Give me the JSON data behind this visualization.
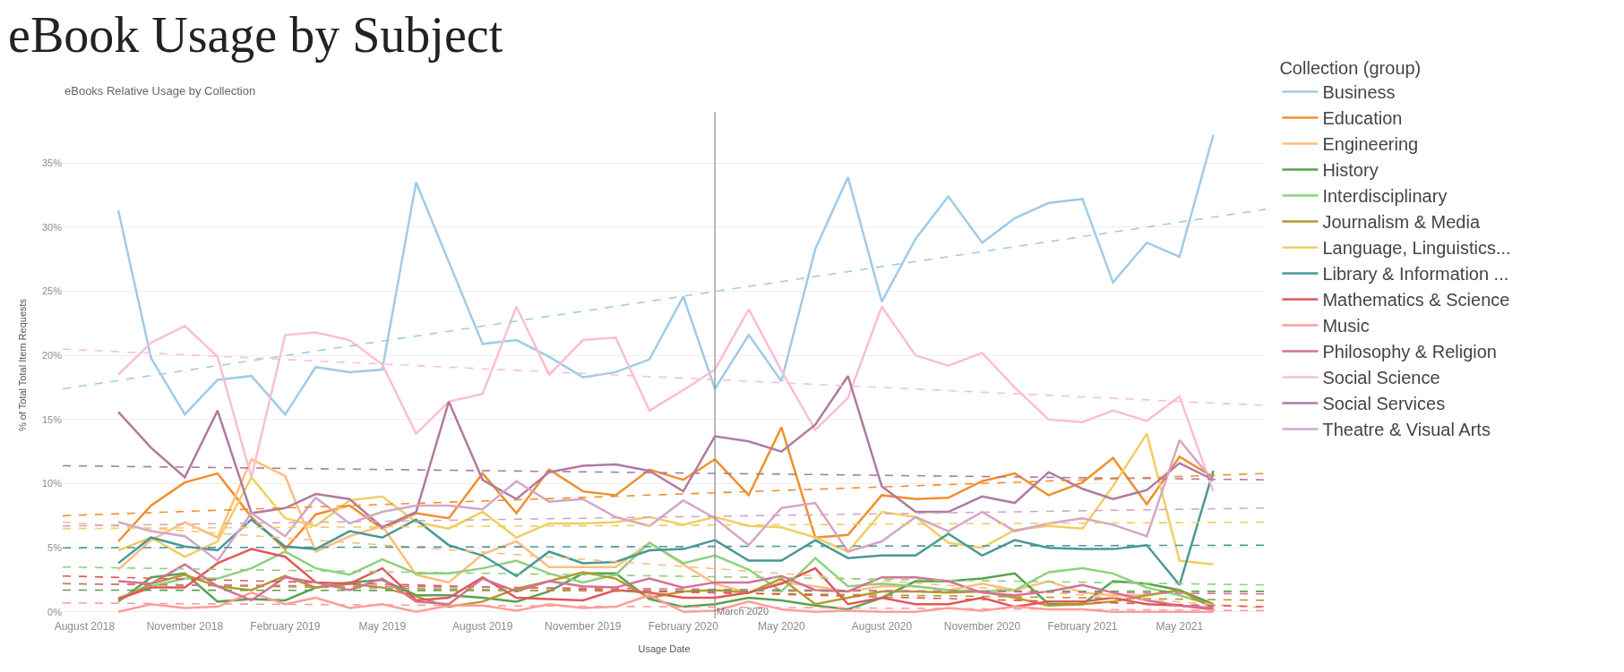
{
  "chart_data": {
    "type": "line",
    "title": "eBook Usage by Subject",
    "subtitle": "eBooks Relative Usage by Collection",
    "xlabel": "Usage Date",
    "ylabel": "% of Total Total Item Requests",
    "legend_title": "Collection (group)",
    "legend": "right",
    "grid": "y",
    "line_style": "solid",
    "x": [
      "2018-09",
      "2018-10",
      "2018-11",
      "2018-12",
      "2019-01",
      "2019-02",
      "2019-03",
      "2019-04",
      "2019-05",
      "2019-06",
      "2019-07",
      "2019-08",
      "2019-09",
      "2019-10",
      "2019-11",
      "2019-12",
      "2020-01",
      "2020-02",
      "2020-03",
      "2020-04",
      "2020-05",
      "2020-06",
      "2020-07",
      "2020-08",
      "2020-09",
      "2020-10",
      "2020-11",
      "2020-12",
      "2021-01",
      "2021-02",
      "2021-03",
      "2021-04",
      "2021-05",
      "2021-06"
    ],
    "xlim": [
      "2018-07-12",
      "2021-07-19"
    ],
    "xticks": [
      {
        "value": "2018-08-01",
        "label": "August 2018"
      },
      {
        "value": "2018-11-01",
        "label": "November 2018"
      },
      {
        "value": "2019-02-01",
        "label": "February 2019"
      },
      {
        "value": "2019-05-01",
        "label": "May 2019"
      },
      {
        "value": "2019-08-01",
        "label": "August 2019"
      },
      {
        "value": "2019-11-01",
        "label": "November 2019"
      },
      {
        "value": "2020-02-01",
        "label": "February 2020"
      },
      {
        "value": "2020-05-01",
        "label": "May 2020"
      },
      {
        "value": "2020-08-01",
        "label": "August 2020"
      },
      {
        "value": "2020-11-01",
        "label": "November 2020"
      },
      {
        "value": "2021-02-01",
        "label": "February 2021"
      },
      {
        "value": "2021-05-01",
        "label": "May 2021"
      }
    ],
    "ylim": [
      -0.5,
      39
    ],
    "yticks": [
      {
        "value": 0,
        "label": "0%"
      },
      {
        "value": 5,
        "label": "5%"
      },
      {
        "value": 10,
        "label": "10%"
      },
      {
        "value": 15,
        "label": "15%"
      },
      {
        "value": 20,
        "label": "20%"
      },
      {
        "value": 25,
        "label": "25%"
      },
      {
        "value": 30,
        "label": "30%"
      },
      {
        "value": 35,
        "label": "35%"
      }
    ],
    "ref_lines": [
      {
        "axis": "x",
        "value": "2020-03",
        "label": "March 2020",
        "color": "#8c8c8c"
      }
    ],
    "series": [
      {
        "name": "Business",
        "color": "#a0cbe8",
        "values": [
          31.3,
          19.8,
          15.4,
          18.1,
          18.4,
          15.4,
          19.1,
          18.7,
          18.9,
          33.5,
          27.3,
          20.9,
          21.2,
          19.9,
          18.3,
          18.7,
          19.7,
          24.6,
          17.4,
          21.6,
          18.0,
          28.3,
          33.9,
          24.2,
          29.1,
          32.4,
          28.8,
          30.7,
          31.9,
          32.2,
          25.7,
          28.8,
          27.7,
          37.2
        ]
      },
      {
        "name": "Education",
        "color": "#f28e2b",
        "values": [
          5.5,
          8.3,
          10.1,
          10.8,
          7.4,
          4.9,
          7.6,
          8.3,
          6.5,
          7.7,
          7.3,
          10.8,
          7.7,
          11.1,
          9.4,
          9.1,
          11.1,
          10.3,
          11.9,
          9.1,
          14.4,
          5.8,
          6.0,
          9.1,
          8.8,
          8.9,
          10.2,
          10.8,
          9.1,
          10.1,
          12.0,
          8.4,
          12.1,
          10.5
        ]
      },
      {
        "name": "Engineering",
        "color": "#ffbe7d",
        "values": [
          3.3,
          5.6,
          7.0,
          5.8,
          11.9,
          10.6,
          4.7,
          5.9,
          6.7,
          2.9,
          2.3,
          4.5,
          5.5,
          3.5,
          3.5,
          3.5,
          5.4,
          3.7,
          2.2,
          1.5,
          2.3,
          2.0,
          1.6,
          2.0,
          2.0,
          1.7,
          2.2,
          1.7,
          2.4,
          1.5,
          1.3,
          1.3,
          1.7,
          0.4
        ]
      },
      {
        "name": "History",
        "color": "#59a14f",
        "values": [
          0.8,
          2.7,
          3.0,
          0.8,
          1.0,
          0.9,
          1.9,
          2.3,
          2.5,
          1.3,
          1.3,
          1.1,
          0.8,
          1.6,
          3.0,
          3.0,
          1.0,
          0.4,
          0.6,
          1.1,
          0.9,
          0.5,
          0.2,
          1.1,
          2.4,
          2.4,
          2.6,
          3.0,
          0.6,
          0.6,
          2.4,
          2.2,
          1.7,
          0.6
        ]
      },
      {
        "name": "Interdisciplinary",
        "color": "#8cd17d",
        "values": [
          1.1,
          2.0,
          2.6,
          2.6,
          3.4,
          4.7,
          3.4,
          2.9,
          4.1,
          3.0,
          3.0,
          3.4,
          4.0,
          3.0,
          2.3,
          2.9,
          5.4,
          3.8,
          4.4,
          3.3,
          1.6,
          4.2,
          2.0,
          2.2,
          2.0,
          1.7,
          1.6,
          1.7,
          3.1,
          3.4,
          3.0,
          1.9,
          1.3,
          0.5
        ]
      },
      {
        "name": "Journalism & Media",
        "color": "#b6992d",
        "values": [
          0.9,
          2.2,
          2.9,
          2.0,
          1.7,
          2.8,
          1.9,
          2.2,
          1.9,
          1.2,
          0.4,
          0.8,
          1.8,
          2.4,
          3.1,
          2.6,
          1.1,
          1.6,
          1.7,
          1.5,
          2.6,
          0.6,
          1.1,
          1.6,
          1.6,
          1.5,
          1.6,
          1.1,
          0.5,
          0.6,
          0.8,
          1.3,
          1.7,
          0.3
        ]
      },
      {
        "name": "Language, Linguistics...",
        "color": "#f1ce63",
        "values": [
          4.8,
          5.8,
          4.3,
          5.5,
          10.5,
          7.3,
          6.7,
          8.7,
          9.0,
          7.0,
          6.5,
          7.8,
          5.8,
          6.9,
          6.9,
          7.0,
          7.4,
          6.8,
          7.4,
          6.7,
          6.6,
          5.8,
          4.7,
          7.8,
          7.4,
          5.4,
          5.0,
          6.4,
          6.7,
          6.5,
          9.8,
          13.9,
          4.0,
          3.7
        ]
      },
      {
        "name": "Library & Information ...",
        "color": "#499894",
        "values": [
          3.8,
          5.8,
          5.1,
          4.8,
          7.2,
          5.1,
          4.9,
          6.3,
          5.8,
          7.2,
          5.2,
          4.4,
          2.8,
          4.7,
          3.8,
          3.9,
          4.8,
          4.9,
          5.6,
          4.0,
          4.0,
          5.6,
          4.2,
          4.4,
          4.4,
          6.1,
          4.4,
          5.6,
          5.0,
          4.9,
          4.9,
          5.2,
          2.1,
          11.0
        ]
      },
      {
        "name": "Mathematics & Science",
        "color": "#e15759",
        "values": [
          1.0,
          1.9,
          1.9,
          3.8,
          4.9,
          4.3,
          2.3,
          2.2,
          3.4,
          0.9,
          1.1,
          2.7,
          1.1,
          1.0,
          0.9,
          1.7,
          1.5,
          1.1,
          1.1,
          1.5,
          2.2,
          3.4,
          0.6,
          1.1,
          0.6,
          0.6,
          1.1,
          0.4,
          0.8,
          0.8,
          1.1,
          0.6,
          0.5,
          0.2
        ]
      },
      {
        "name": "Music",
        "color": "#ff9d9a",
        "values": [
          0.0,
          0.6,
          0.3,
          0.4,
          1.5,
          0.6,
          1.1,
          0.3,
          0.6,
          0.0,
          0.5,
          0.5,
          0.1,
          0.6,
          0.3,
          0.4,
          1.3,
          0.0,
          0.1,
          0.8,
          0.2,
          0.0,
          0.1,
          0.0,
          0.0,
          0.3,
          0.1,
          0.4,
          0.2,
          0.2,
          0.0,
          0.0,
          0.0,
          0.0
        ]
      },
      {
        "name": "Philosophy & Religion",
        "color": "#d37295",
        "values": [
          2.4,
          2.2,
          3.7,
          2.0,
          0.9,
          2.7,
          2.3,
          1.7,
          2.6,
          0.8,
          0.6,
          2.6,
          1.6,
          2.4,
          2.0,
          1.9,
          2.6,
          1.9,
          2.3,
          2.3,
          2.8,
          1.7,
          1.6,
          2.7,
          2.7,
          2.4,
          1.5,
          1.3,
          1.6,
          2.1,
          1.5,
          0.9,
          0.5,
          0.3
        ]
      },
      {
        "name": "Social Science",
        "color": "#fabfd2",
        "values": [
          18.5,
          21.0,
          22.3,
          19.9,
          10.5,
          21.6,
          21.8,
          21.2,
          19.3,
          13.9,
          16.4,
          17.0,
          23.8,
          18.5,
          21.2,
          21.4,
          15.7,
          17.3,
          18.9,
          23.6,
          18.8,
          14.2,
          16.7,
          23.8,
          20.0,
          19.2,
          20.2,
          17.5,
          15.0,
          14.8,
          15.7,
          14.9,
          16.8,
          9.4
        ]
      },
      {
        "name": "Social Services",
        "color": "#b07aa1",
        "values": [
          15.6,
          12.8,
          10.5,
          15.7,
          7.7,
          8.1,
          9.2,
          8.8,
          6.6,
          7.8,
          16.4,
          10.3,
          8.8,
          10.9,
          11.4,
          11.5,
          11.0,
          9.4,
          13.7,
          13.3,
          12.5,
          14.6,
          18.4,
          9.8,
          7.8,
          7.8,
          9.0,
          8.5,
          10.9,
          9.6,
          8.8,
          9.5,
          11.6,
          10.3
        ]
      },
      {
        "name": "Theatre & Visual Arts",
        "color": "#d4a6c8",
        "values": [
          7.0,
          6.3,
          5.9,
          4.0,
          7.7,
          5.9,
          8.9,
          6.9,
          7.8,
          8.3,
          8.3,
          8.0,
          10.2,
          8.6,
          8.8,
          7.4,
          6.7,
          8.7,
          7.3,
          5.2,
          8.1,
          8.5,
          4.7,
          5.5,
          7.4,
          6.3,
          7.8,
          6.3,
          6.9,
          7.3,
          6.8,
          5.9,
          13.4,
          10.2
        ]
      },
      {
        "type": "line",
        "line_style": "dashed",
        "color": "#a0cbe8",
        "x": [
          "2018-07-12",
          "2021-07-19"
        ],
        "values": [
          17.4,
          31.4
        ]
      },
      {
        "type": "line",
        "line_style": "dashed",
        "color": "#f28e2b",
        "x": [
          "2018-07-12",
          "2021-07-19"
        ],
        "values": [
          7.5,
          10.8
        ]
      },
      {
        "type": "line",
        "line_style": "dashed",
        "color": "#ffbe7d",
        "x": [
          "2018-07-12",
          "2021-07-19"
        ],
        "values": [
          7.0,
          0.3
        ]
      },
      {
        "type": "line",
        "line_style": "dashed",
        "color": "#59a14f",
        "x": [
          "2018-07-12",
          "2021-07-19"
        ],
        "values": [
          1.7,
          1.6
        ]
      },
      {
        "type": "line",
        "line_style": "dashed",
        "color": "#8cd17d",
        "x": [
          "2018-07-12",
          "2021-07-19"
        ],
        "values": [
          3.5,
          2.1
        ]
      },
      {
        "type": "line",
        "line_style": "dashed",
        "color": "#b6992d",
        "x": [
          "2018-07-12",
          "2021-07-19"
        ],
        "values": [
          2.2,
          0.9
        ]
      },
      {
        "type": "line",
        "line_style": "dashed",
        "color": "#f1ce63",
        "x": [
          "2018-07-12",
          "2021-07-19"
        ],
        "values": [
          6.5,
          7.0
        ]
      },
      {
        "type": "line",
        "line_style": "dashed",
        "color": "#499894",
        "x": [
          "2018-07-12",
          "2021-07-19"
        ],
        "values": [
          5.0,
          5.2
        ]
      },
      {
        "type": "line",
        "line_style": "dashed",
        "color": "#e15759",
        "x": [
          "2018-07-12",
          "2021-07-19"
        ],
        "values": [
          2.8,
          0.4
        ]
      },
      {
        "type": "line",
        "line_style": "dashed",
        "color": "#ff9d9a",
        "x": [
          "2018-07-12",
          "2021-07-19"
        ],
        "values": [
          0.7,
          0.1
        ]
      },
      {
        "type": "line",
        "line_style": "dashed",
        "color": "#d37295",
        "x": [
          "2018-07-12",
          "2021-07-19"
        ],
        "values": [
          2.2,
          1.4
        ]
      },
      {
        "type": "line",
        "line_style": "dashed",
        "color": "#fabfd2",
        "x": [
          "2018-07-12",
          "2021-07-19"
        ],
        "values": [
          20.5,
          16.1
        ]
      },
      {
        "type": "line",
        "line_style": "dashed",
        "color": "#b07aa1",
        "x": [
          "2018-07-12",
          "2021-07-19"
        ],
        "values": [
          11.4,
          10.3
        ]
      },
      {
        "type": "line",
        "line_style": "dashed",
        "color": "#d4a6c8",
        "x": [
          "2018-07-12",
          "2021-07-19"
        ],
        "values": [
          6.7,
          8.1
        ]
      }
    ]
  }
}
